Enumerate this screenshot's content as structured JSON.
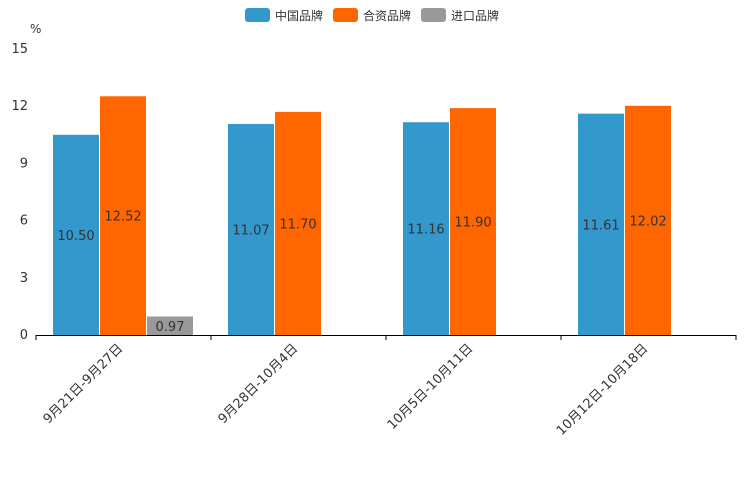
{
  "chart_data": {
    "type": "bar",
    "title": "",
    "unit_label": "%",
    "xlabel": "",
    "ylabel": "%",
    "ylim": [
      0,
      15
    ],
    "yticks": [
      0,
      3,
      6,
      9,
      12,
      15
    ],
    "grid": false,
    "legend_position": "top-center",
    "categories": [
      "9月21日-9月27日",
      "9月28日-10月4日",
      "10月5日-10月11日",
      "10月12日-10月18日"
    ],
    "series": [
      {
        "name": "中国品牌",
        "color": "#3399cc",
        "values": [
          10.5,
          11.07,
          11.16,
          11.61
        ],
        "labels": [
          "10.50",
          "11.07",
          "11.16",
          "11.61"
        ]
      },
      {
        "name": "合资品牌",
        "color": "#ff6600",
        "values": [
          12.52,
          11.7,
          11.9,
          12.02
        ],
        "labels": [
          "12.52",
          "11.70",
          "11.90",
          "12.02"
        ]
      },
      {
        "name": "进口品牌",
        "color": "#999999",
        "values": [
          0.97,
          null,
          null,
          null
        ],
        "labels": [
          "0.97",
          null,
          null,
          null
        ]
      }
    ]
  }
}
